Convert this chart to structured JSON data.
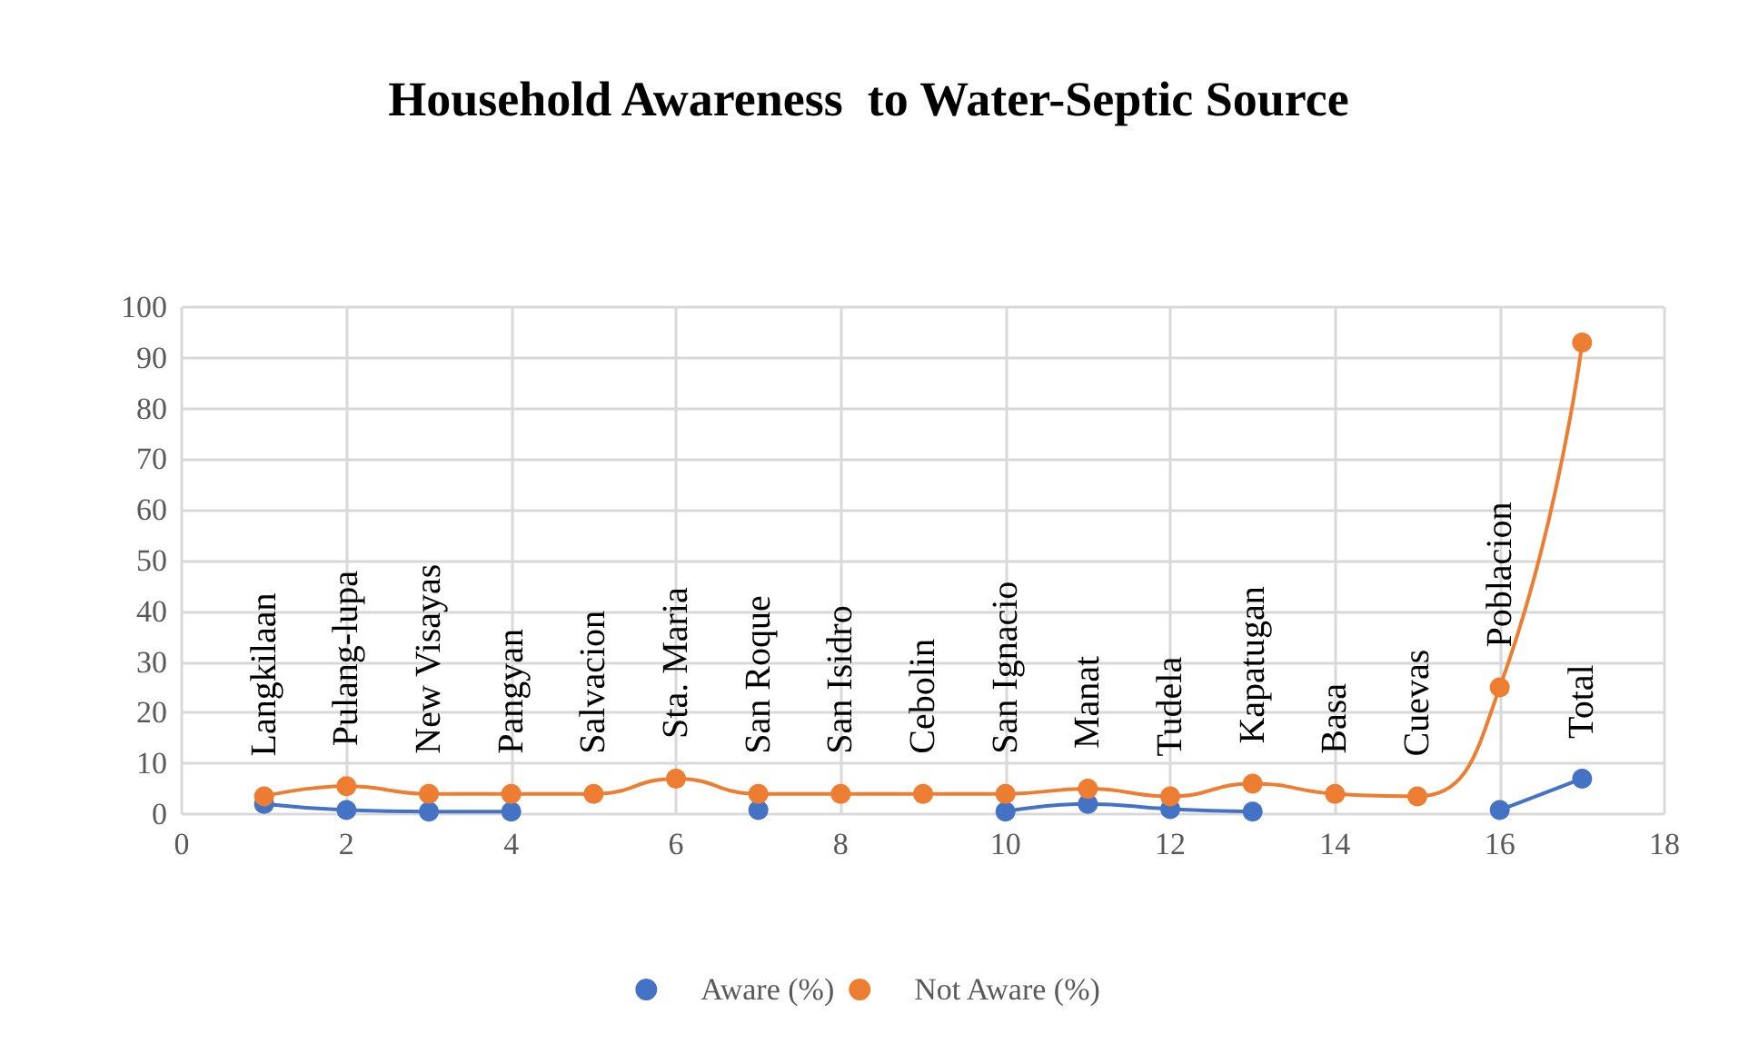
{
  "chart_data": {
    "type": "line",
    "title": "Household Awareness  to Water-Septic Source",
    "x": [
      1,
      2,
      3,
      4,
      5,
      6,
      7,
      8,
      9,
      10,
      11,
      12,
      13,
      14,
      15,
      16,
      17
    ],
    "series": [
      {
        "name": "Aware (%)",
        "color": "#4472c4",
        "values": [
          2,
          0.8,
          0.5,
          0.5,
          null,
          null,
          0.8,
          null,
          null,
          0.5,
          2,
          1,
          0.5,
          null,
          null,
          0.8,
          7
        ]
      },
      {
        "name": "Not Aware (%)",
        "color": "#ed7d31",
        "values": [
          3.5,
          5.5,
          4,
          4,
          4,
          7,
          4,
          4,
          4,
          4,
          5,
          3.5,
          6,
          4,
          3.5,
          25,
          93
        ]
      }
    ],
    "xlim": [
      0,
      18
    ],
    "xticks": [
      0,
      2,
      4,
      6,
      8,
      10,
      12,
      14,
      16,
      18
    ],
    "ylim": [
      0,
      100
    ],
    "yticks": [
      0,
      10,
      20,
      30,
      40,
      50,
      60,
      70,
      80,
      90,
      100
    ],
    "annotations": [
      "Langkilaan",
      "Pulang-lupa",
      "New Visayas",
      "Pangyan",
      "Salvacion",
      "Sta. Maria",
      "San Roque",
      "San Isidro",
      "Cebolin",
      "San Ignacio",
      "Manat",
      "Tudela",
      "Kapatugan",
      "Basa",
      "Cuevas",
      "Poblacion",
      "Total"
    ],
    "grid": true,
    "legend": "bottom",
    "marker": "circle",
    "line_style": "solid"
  }
}
